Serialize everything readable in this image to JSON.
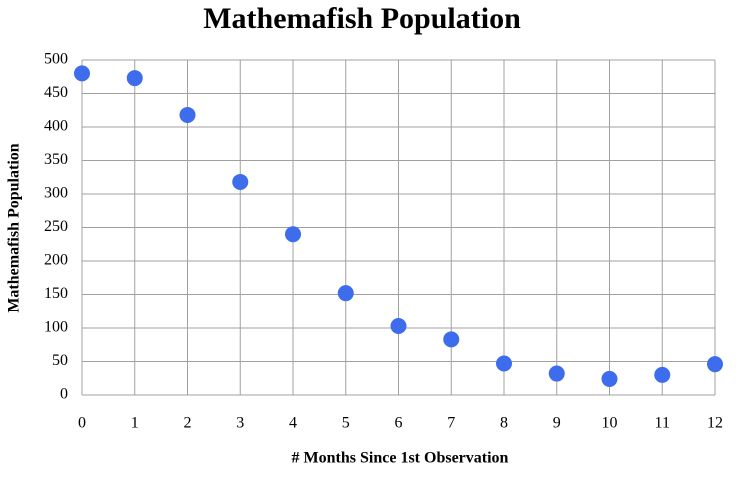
{
  "chart_data": {
    "type": "scatter",
    "title": "Mathemafish Population",
    "x_label": "# Months Since 1st Observation",
    "y_label": "Mathemafish Population",
    "x": [
      0,
      1,
      2,
      3,
      4,
      5,
      6,
      7,
      8,
      9,
      10,
      11,
      12
    ],
    "values": [
      480,
      473,
      418,
      318,
      240,
      152,
      103,
      83,
      47,
      32,
      24,
      30,
      46
    ],
    "color": "#3d6ced",
    "xlim": [
      0,
      12
    ],
    "xticks": [
      0,
      1,
      2,
      3,
      4,
      5,
      6,
      7,
      8,
      9,
      10,
      11,
      12
    ],
    "ylim": [
      0,
      500
    ],
    "yticks": [
      0,
      50,
      100,
      150,
      200,
      250,
      300,
      350,
      400,
      450,
      500
    ],
    "grid": true
  }
}
